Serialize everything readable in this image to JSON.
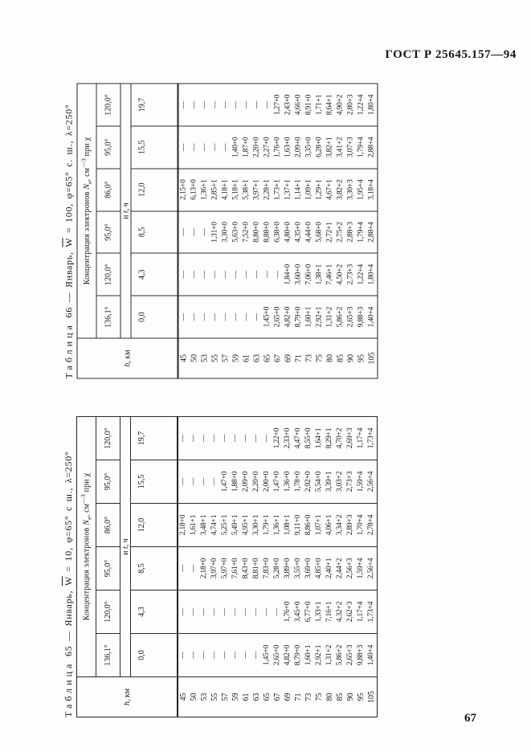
{
  "page": {
    "header": "ГОСТ Р 25645.157—94",
    "page_number": "67"
  },
  "tables": {
    "t65": {
      "caption_word": "Таблица",
      "caption_mid": " 65 — Январь, ",
      "caption_w": "W",
      "caption_post": " = 10, φ=65° с ш., λ=250°",
      "conc_pre": "Концентрация электронов ",
      "conc_n": "N",
      "conc_sub": "e",
      "conc_mid": ", см",
      "conc_sup": "—3",
      "conc_post": " при χ",
      "t_label_pre": "и ",
      "t_label_t": "t",
      "t_label_post": ", ч",
      "h_label_h": "h",
      "h_label_post": ", км",
      "chi_values": [
        "136,1°",
        "120,0°",
        "95,0°",
        "86,0°",
        "95,0°",
        "120,0°"
      ],
      "t_values": [
        "0,0",
        "4,3",
        "8,5",
        "12,0",
        "15,5",
        "19,7"
      ],
      "h_values": [
        "45",
        "50",
        "53",
        "55",
        "57",
        "59",
        "61",
        "63",
        "65",
        "67",
        "69",
        "71",
        "73",
        "75",
        "80",
        "85",
        "90",
        "95",
        "105"
      ],
      "rows": [
        [
          "—",
          "—",
          "—",
          "2,18+0",
          "—",
          "—"
        ],
        [
          "—",
          "—",
          "—",
          "1,61+1",
          "—",
          "—"
        ],
        [
          "—",
          "—",
          "2,18+0",
          "3,48+1",
          "—",
          "—"
        ],
        [
          "—",
          "—",
          "3,97+0",
          "4,74+1",
          "—",
          "—"
        ],
        [
          "—",
          "—",
          "5,97+0",
          "5,25+1",
          "1,47+0",
          "—"
        ],
        [
          "—",
          "—",
          "7,61+0",
          "5,49+1",
          "1,88+0",
          "—"
        ],
        [
          "—",
          "—",
          "8,43+0",
          "4,95+1",
          "2,09+0",
          "—"
        ],
        [
          "—",
          "—",
          "8,81+0",
          "3,30+1",
          "2,20+0",
          "—"
        ],
        [
          "1,45+0",
          "—",
          "7,83+0",
          "1,79+1",
          "2,00+0",
          "—"
        ],
        [
          "2,65+0",
          "—",
          "5,28+0",
          "1,36+1",
          "1,47+0",
          "1,22+0"
        ],
        [
          "4,82+0",
          "1,76+0",
          "3,89+0",
          "1,08+1",
          "1,36+0",
          "2,33+0"
        ],
        [
          "8,79+0",
          "3,45+0",
          "3,55+0",
          "9,11+0",
          "1,78+0",
          "4,47+0"
        ],
        [
          "1,60+1",
          "6,77+0",
          "3,69+0",
          "8,86+0",
          "2,92+0",
          "8,55+0"
        ],
        [
          "2,92+1",
          "1,33+1",
          "4,85+0",
          "1,07+1",
          "5,54+0",
          "1,64+1"
        ],
        [
          "1,31+2",
          "7,16+1",
          "2,40+1",
          "4,06+1",
          "3,39+1",
          "8,29+1"
        ],
        [
          "5,86+2",
          "4,32+2",
          "2,44+2",
          "3,34+2",
          "3,03+2",
          "4,70+2"
        ],
        [
          "2,65+3",
          "2,62+3",
          "2,56+3",
          "2,89+3",
          "2,73+3",
          "2,69+3"
        ],
        [
          "9,88+3",
          "1,17+4",
          "1,59+4",
          "1,70+4",
          "1,59+4",
          "1,17+4"
        ],
        [
          "1,40+4",
          "1,73+4",
          "2,56+4",
          "2,78+4",
          "2,56+4",
          "1,73+4"
        ]
      ]
    },
    "t66": {
      "caption_word": "Таблица",
      "caption_mid": " 66 — Январь, ",
      "caption_w": "W",
      "caption_post": " = 100, φ=65° с. ш., λ=250°",
      "conc_pre": "Концентрация электронов ",
      "conc_n": "N",
      "conc_sub": "e",
      "conc_mid": ", см",
      "conc_sup": "—3",
      "conc_post": " при χ",
      "t_label_pre": "и ",
      "t_label_t": "t",
      "t_label_post": ", ч",
      "h_label_h": "h",
      "h_label_post": ", км",
      "chi_values": [
        "136,1°",
        "120,0°",
        "95,0°",
        "86,0°",
        "95,0°",
        "120,0°"
      ],
      "t_values": [
        "0,0",
        "4,3",
        "8,5",
        "12,0",
        "15,5",
        "19,7"
      ],
      "h_values": [
        "45",
        "50",
        "53",
        "55",
        "57",
        "59",
        "61",
        "63",
        "65",
        "67",
        "69",
        "71",
        "73",
        "75",
        "80",
        "85",
        "90",
        "95",
        "105"
      ],
      "rows": [
        [
          "—",
          "—",
          "—",
          "2,15+0",
          "—",
          "—"
        ],
        [
          "—",
          "—",
          "—",
          "6,13+0",
          "—",
          "—"
        ],
        [
          "—",
          "—",
          "—",
          "1,36+1",
          "—",
          "—"
        ],
        [
          "—",
          "—",
          "1,31+0",
          "2,85+1",
          "—",
          "—"
        ],
        [
          "—",
          "—",
          "3,30+0",
          "4,18+1",
          "—",
          "—"
        ],
        [
          "—",
          "—",
          "5,63+0",
          "5,18+1",
          "1,40+0",
          "—"
        ],
        [
          "—",
          "—",
          "7,52+0",
          "5,38+1",
          "1,87+0",
          "—"
        ],
        [
          "—",
          "—",
          "8,80+0",
          "3,97+1",
          "2,20+0",
          "—"
        ],
        [
          "1,45+0",
          "—",
          "8,88+0",
          "2,28+1",
          "2,27+0",
          "—"
        ],
        [
          "2,65+0",
          "—",
          "6,38+0",
          "1,73+1",
          "1,76+0",
          "1,27+0"
        ],
        [
          "4,82+0",
          "1,84+0",
          "4,80+0",
          "1,37+1",
          "1,63+0",
          "2,43+0"
        ],
        [
          "8,79+0",
          "3,60+0",
          "4,35+0",
          "1,14+1",
          "2,09+0",
          "4,66+0"
        ],
        [
          "1,60+1",
          "7,06+0",
          "4,44+0",
          "1,09+1",
          "3,35+0",
          "8,91+0"
        ],
        [
          "2,92+1",
          "1,38+1",
          "5,68+0",
          "1,29+1",
          "6,28+0",
          "1,71+1"
        ],
        [
          "1,31+2",
          "7,46+1",
          "2,72+1",
          "4,67+1",
          "3,82+1",
          "8,64+1"
        ],
        [
          "5,86+2",
          "4,50+2",
          "2,75+2",
          "3,82+2",
          "3,41+2",
          "4,90+2"
        ],
        [
          "2,65+3",
          "2,73+3",
          "2,88+3",
          "3,30+3",
          "3,07+3",
          "2,80+3"
        ],
        [
          "9,88+3",
          "1,22+4",
          "1,79+4",
          "1,95+4",
          "1,79+4",
          "1,22+4"
        ],
        [
          "1,40+4",
          "1,80+4",
          "2,88+4",
          "3,18+4",
          "2,88+4",
          "1,80+4"
        ]
      ]
    }
  }
}
